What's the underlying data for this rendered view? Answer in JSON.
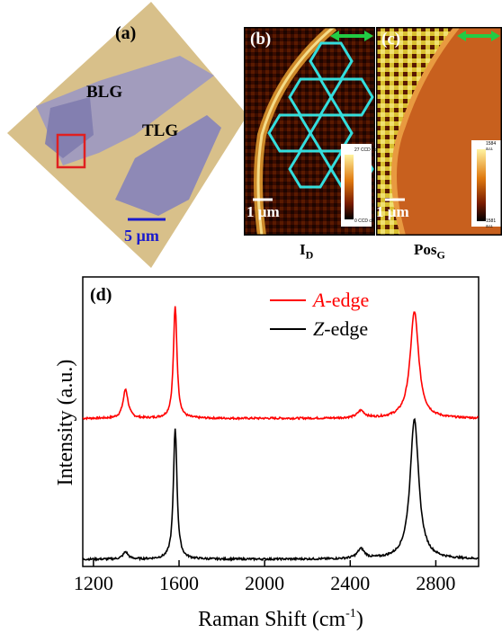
{
  "panel_a": {
    "label": "(a)",
    "region_bilayer": "BLG",
    "region_trilayer": "TLG",
    "scale_bar": "5 µm"
  },
  "panel_b": {
    "label": "(b)",
    "scale_bar": "1 µm",
    "colorbar_max": "27 CCD cts",
    "colorbar_min": "0 CCD cts",
    "caption_main": "I",
    "caption_sub": "D"
  },
  "panel_c": {
    "label": "(c)",
    "scale_bar": "1 µm",
    "colorbar_max": "1584 a.u.",
    "colorbar_min": "1581 a.u.",
    "caption_main": "Pos",
    "caption_sub": "G"
  },
  "panel_d": {
    "label": "(d)"
  },
  "chart_data": {
    "type": "line",
    "xlabel": "Raman Shift (cm",
    "xlabel_sup": "-1",
    "xlabel_end": ")",
    "ylabel": "Intensity (a.u.)",
    "xlim": [
      1150,
      3000
    ],
    "x_ticks": [
      1200,
      1600,
      2000,
      2400,
      2800
    ],
    "legend_position": "top-right",
    "series": [
      {
        "name": "A-edge",
        "name_italic": "A",
        "name_rest": "-edge",
        "color": "#ff0000",
        "baseline": 0.58,
        "peaks": [
          {
            "x": 1350,
            "height": 0.12,
            "width": 14
          },
          {
            "x": 1582,
            "height": 0.46,
            "width": 10
          },
          {
            "x": 2450,
            "height": 0.03,
            "width": 20
          },
          {
            "x": 2700,
            "height": 0.44,
            "width": 24
          }
        ]
      },
      {
        "name": "Z-edge",
        "name_italic": "Z",
        "name_rest": "-edge",
        "color": "#000000",
        "baseline": 0.0,
        "peaks": [
          {
            "x": 1350,
            "height": 0.03,
            "width": 14
          },
          {
            "x": 1582,
            "height": 0.54,
            "width": 10
          },
          {
            "x": 2450,
            "height": 0.04,
            "width": 20
          },
          {
            "x": 2700,
            "height": 0.58,
            "width": 24
          }
        ]
      }
    ]
  }
}
